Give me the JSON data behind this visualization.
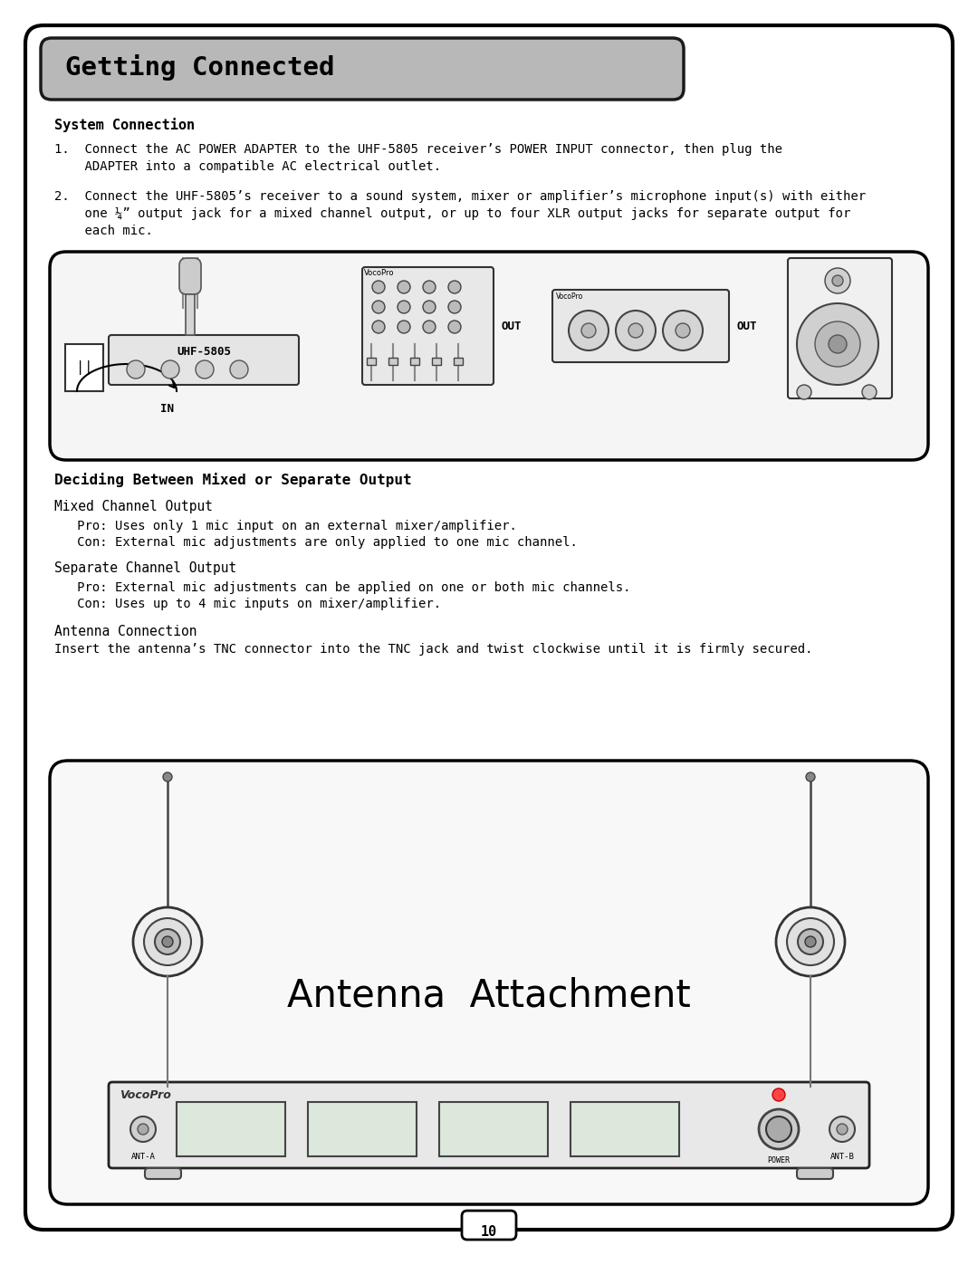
{
  "bg_color": "#ffffff",
  "title_text": "Getting Connected",
  "section1_header": "System Connection",
  "item1_line1": "1.  Connect the AC POWER ADAPTER to the UHF-5805 receiver’s POWER INPUT connector, then plug the",
  "item1_line2": "    ADAPTER into a compatible AC electrical outlet.",
  "item2_line1": "2.  Connect the UHF-5805’s receiver to a sound system, mixer or amplifier’s microphone input(s) with either",
  "item2_line2": "    one ¼” output jack for a mixed channel output, or up to four XLR output jacks for separate output for",
  "item2_line3": "    each mic.",
  "section2_header": "Deciding Between Mixed or Separate Output",
  "mixed_title": "Mixed Channel Output",
  "mixed_pro": "   Pro: Uses only 1 mic input on an external mixer/amplifier.",
  "mixed_con": "   Con: External mic adjustments are only applied to one mic channel.",
  "separate_title": "Separate Channel Output",
  "separate_pro": "   Pro: External mic adjustments can be applied on one or both mic channels.",
  "separate_con": "   Con: Uses up to 4 mic inputs on mixer/amplifier.",
  "antenna_title": "Antenna Connection",
  "antenna_text": "Insert the antenna’s TNC connector into the TNC jack and twist clockwise until it is firmly secured.",
  "antenna_attachment_text": "Antenna  Attachment",
  "page_number": "10"
}
